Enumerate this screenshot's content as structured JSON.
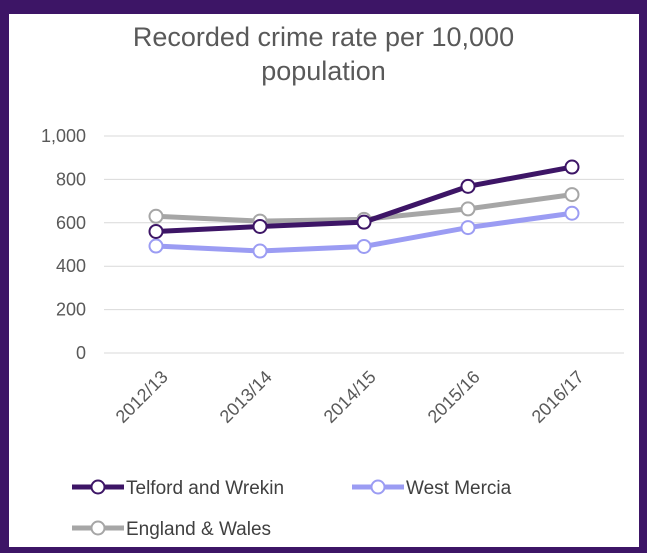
{
  "chart_data": {
    "type": "line",
    "title_lines": [
      "Recorded crime rate per 10,000",
      "population"
    ],
    "categories": [
      "2012/13",
      "2013/14",
      "2014/15",
      "2015/16",
      "2016/17"
    ],
    "y_ticks": [
      "0",
      "200",
      "400",
      "600",
      "800",
      "1,000"
    ],
    "ylim": [
      0,
      1000
    ],
    "grid": true,
    "legend_position": "bottom",
    "series": [
      {
        "name": "Telford and Wrekin",
        "color": "#3d1566",
        "values": [
          560,
          583,
          603,
          768,
          857
        ]
      },
      {
        "name": "West Mercia",
        "color": "#9b9cf3",
        "values": [
          493,
          470,
          491,
          578,
          644
        ]
      },
      {
        "name": "England & Wales",
        "color": "#a6a6a6",
        "values": [
          630,
          608,
          616,
          664,
          730
        ]
      }
    ]
  },
  "colors": {
    "frame": "#3d1566",
    "grid": "#d9d9d9",
    "text": "#595959"
  }
}
